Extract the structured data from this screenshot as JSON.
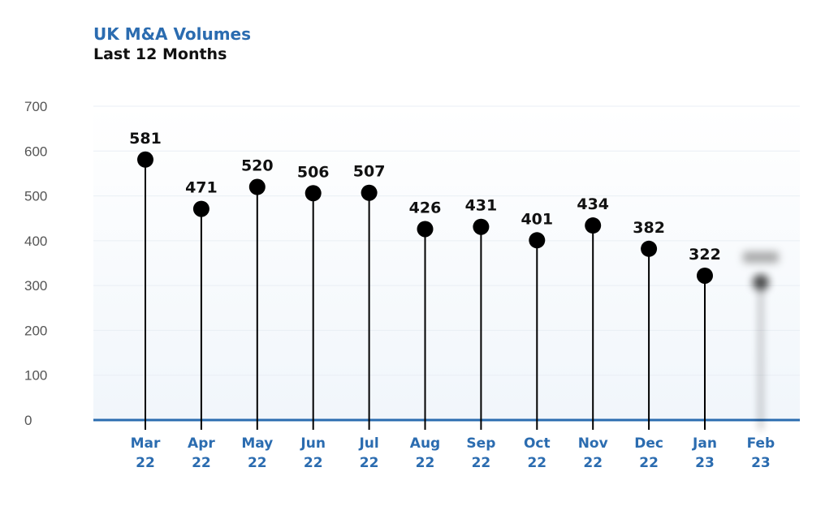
{
  "title": "UK M&A Volumes",
  "subtitle": "Last 12 Months",
  "colors": {
    "accent": "#2b6cb0",
    "text": "#111111",
    "axis_text": "#555555",
    "grid": "#e9eef4",
    "marker": "#000000"
  },
  "chart_data": {
    "type": "lollipop",
    "title": "UK M&A Volumes",
    "subtitle": "Last 12 Months",
    "categories": [
      [
        "Mar",
        "22"
      ],
      [
        "Apr",
        "22"
      ],
      [
        "May",
        "22"
      ],
      [
        "Jun",
        "22"
      ],
      [
        "Jul",
        "22"
      ],
      [
        "Aug",
        "22"
      ],
      [
        "Sep",
        "22"
      ],
      [
        "Oct",
        "22"
      ],
      [
        "Nov",
        "22"
      ],
      [
        "Dec",
        "22"
      ],
      [
        "Jan",
        "23"
      ],
      [
        "Feb",
        "23"
      ]
    ],
    "values": [
      581,
      471,
      520,
      506,
      507,
      426,
      431,
      401,
      434,
      382,
      322,
      307
    ],
    "labels": [
      "581",
      "471",
      "520",
      "506",
      "507",
      "426",
      "431",
      "401",
      "434",
      "382",
      "322",
      ""
    ],
    "blurred_last": true,
    "ylim": [
      0,
      700
    ],
    "yticks": [
      "0",
      "100",
      "200",
      "300",
      "400",
      "500",
      "600",
      "700"
    ],
    "grid": true
  }
}
